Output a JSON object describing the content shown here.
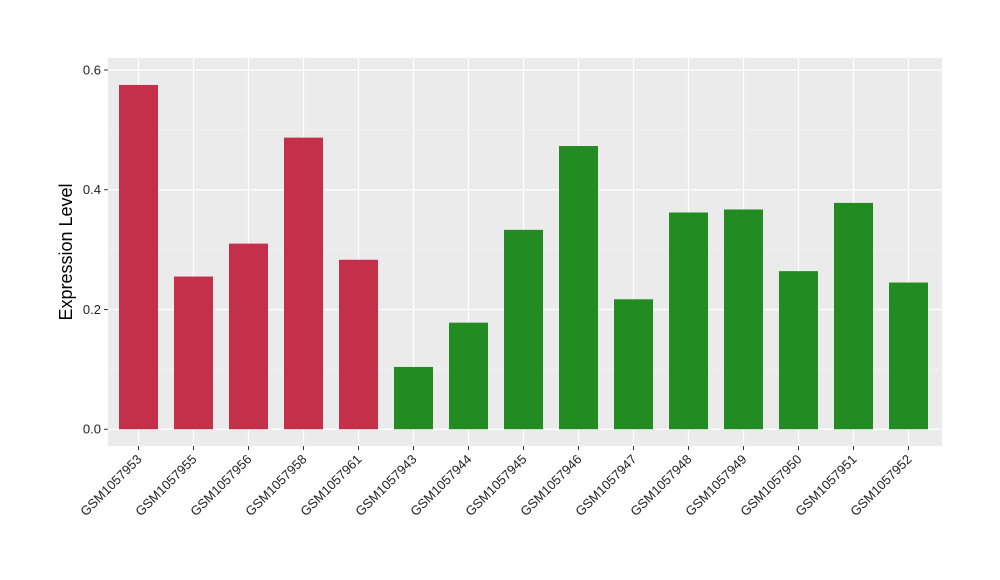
{
  "chart_data": {
    "type": "bar",
    "title": "",
    "xlabel": "",
    "ylabel": "Expression Level",
    "ylim": [
      -0.028,
      0.62
    ],
    "yticks": [
      0.0,
      0.2,
      0.4,
      0.6
    ],
    "ytick_labels": [
      "0.0",
      "0.2",
      "0.4",
      "0.6"
    ],
    "grid": true,
    "legend": "none",
    "categories": [
      "GSM1057953",
      "GSM1057955",
      "GSM1057956",
      "GSM1057958",
      "GSM1057961",
      "GSM1057943",
      "GSM1057944",
      "GSM1057945",
      "GSM1057946",
      "GSM1057947",
      "GSM1057948",
      "GSM1057949",
      "GSM1057950",
      "GSM1057951",
      "GSM1057952"
    ],
    "values": [
      0.575,
      0.255,
      0.31,
      0.487,
      0.283,
      0.104,
      0.178,
      0.333,
      0.473,
      0.217,
      0.362,
      0.367,
      0.264,
      0.378,
      0.245
    ],
    "bar_groups": [
      "red",
      "red",
      "red",
      "red",
      "red",
      "green",
      "green",
      "green",
      "green",
      "green",
      "green",
      "green",
      "green",
      "green",
      "green"
    ],
    "colors": {
      "red": "#C4304A",
      "green": "#228B22",
      "panel_background": "#EBEBEB",
      "grid_major": "#FFFFFF",
      "grid_minor": "#F5F5F5"
    }
  }
}
